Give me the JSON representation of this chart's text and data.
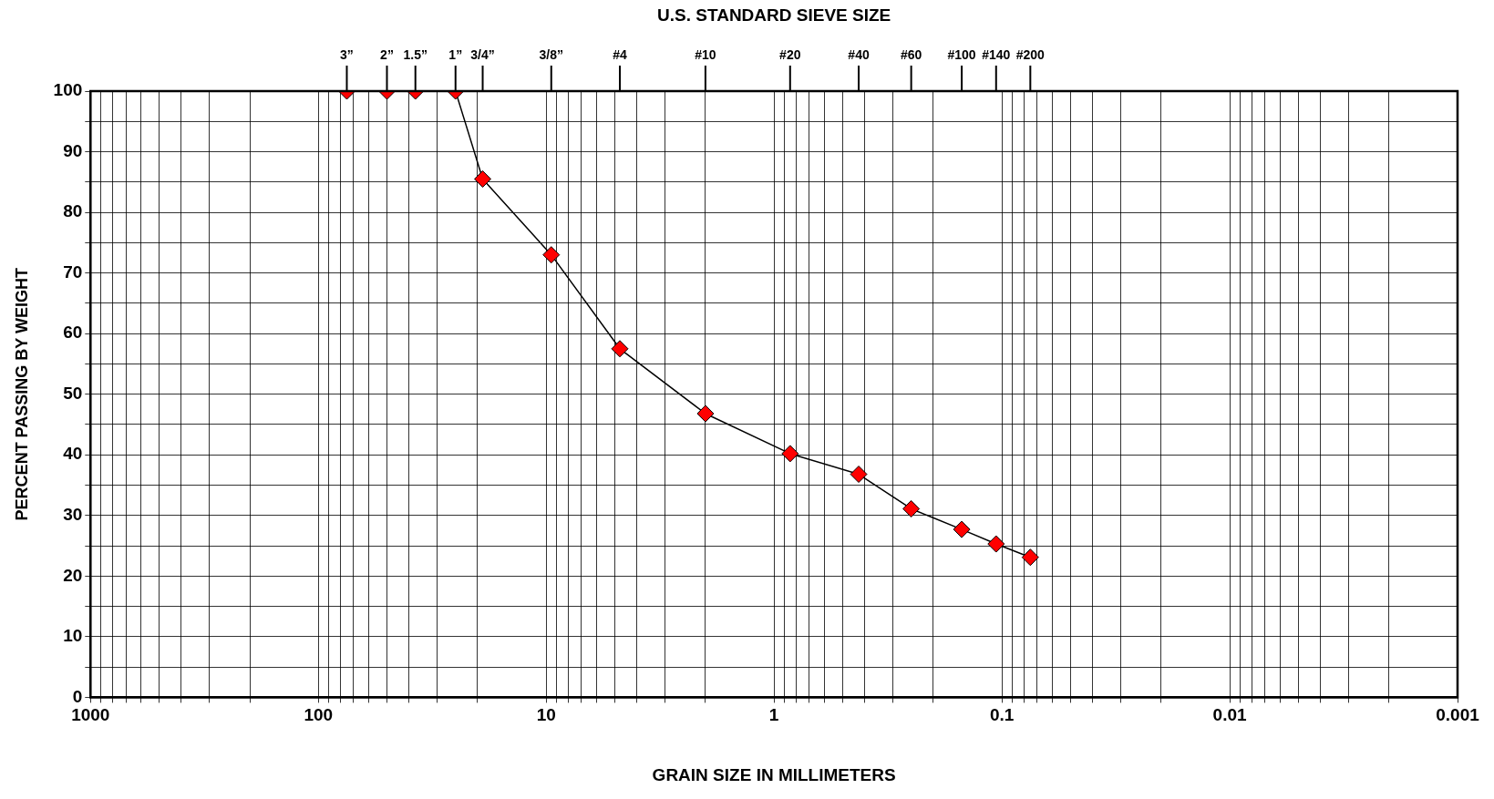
{
  "chart_data": {
    "type": "line",
    "xlabel": "GRAIN SIZE IN MILLIMETERS",
    "ylabel": "PERCENT PASSING BY WEIGHT",
    "title": "U.S. STANDARD SIEVE SIZE",
    "log": "x",
    "grid": true,
    "marker": "diamond",
    "line_style": "solid",
    "xlim": [
      1000,
      0.001
    ],
    "ylim": [
      0,
      100
    ],
    "xticks": [
      1000,
      {
        "value": 900,
        "label": null
      },
      {
        "value": 800,
        "label": null
      },
      {
        "value": 700,
        "label": null
      },
      {
        "value": 600,
        "label": null
      },
      {
        "value": 500,
        "label": null
      },
      {
        "value": 400,
        "label": null
      },
      {
        "value": 300,
        "label": null
      },
      {
        "value": 200,
        "label": null
      },
      100,
      {
        "value": 90,
        "label": null
      },
      {
        "value": 80,
        "label": null
      },
      {
        "value": 70,
        "label": null
      },
      {
        "value": 60,
        "label": null
      },
      {
        "value": 50,
        "label": null
      },
      {
        "value": 40,
        "label": null
      },
      {
        "value": 30,
        "label": null
      },
      {
        "value": 20,
        "label": null
      },
      10,
      {
        "value": 9,
        "label": null
      },
      {
        "value": 8,
        "label": null
      },
      {
        "value": 7,
        "label": null
      },
      {
        "value": 6,
        "label": null
      },
      {
        "value": 5,
        "label": null
      },
      {
        "value": 4,
        "label": null
      },
      {
        "value": 3,
        "label": null
      },
      {
        "value": 2,
        "label": null
      },
      1,
      {
        "value": 0.9,
        "label": null
      },
      {
        "value": 0.8,
        "label": null
      },
      {
        "value": 0.7,
        "label": null
      },
      {
        "value": 0.6,
        "label": null
      },
      {
        "value": 0.5,
        "label": null
      },
      {
        "value": 0.4,
        "label": null
      },
      {
        "value": 0.3,
        "label": null
      },
      {
        "value": 0.2,
        "label": null
      },
      0.1,
      {
        "value": 0.09,
        "label": null
      },
      {
        "value": 0.08,
        "label": null
      },
      {
        "value": 0.07,
        "label": null
      },
      {
        "value": 0.06,
        "label": null
      },
      {
        "value": 0.05,
        "label": null
      },
      {
        "value": 0.04,
        "label": null
      },
      {
        "value": 0.03,
        "label": null
      },
      {
        "value": 0.02,
        "label": null
      },
      0.01,
      {
        "value": 0.009,
        "label": null
      },
      {
        "value": 0.008,
        "label": null
      },
      {
        "value": 0.007,
        "label": null
      },
      {
        "value": 0.006,
        "label": null
      },
      {
        "value": 0.005,
        "label": null
      },
      {
        "value": 0.004,
        "label": null
      },
      {
        "value": 0.003,
        "label": null
      },
      {
        "value": 0.002,
        "label": null
      },
      0.001
    ],
    "yticks": [
      0,
      {
        "value": 5,
        "label": null
      },
      10,
      {
        "value": 15,
        "label": null
      },
      20,
      {
        "value": 25,
        "label": null
      },
      30,
      {
        "value": 35,
        "label": null
      },
      40,
      {
        "value": 45,
        "label": null
      },
      50,
      {
        "value": 55,
        "label": null
      },
      60,
      {
        "value": 65,
        "label": null
      },
      70,
      {
        "value": 75,
        "label": null
      },
      80,
      {
        "value": 85,
        "label": null
      },
      90,
      {
        "value": 95,
        "label": null
      },
      100
    ],
    "annotations": [
      {
        "text": "3”",
        "x": 75
      },
      {
        "text": "2”",
        "x": 50
      },
      {
        "text": "1.5”",
        "x": 37.5
      },
      {
        "text": "1”",
        "x": 25
      },
      {
        "text": "3/4”",
        "x": 19
      },
      {
        "text": "3/8”",
        "x": 9.5
      },
      {
        "text": "#4",
        "x": 4.75
      },
      {
        "text": "#10",
        "x": 2
      },
      {
        "text": "#20",
        "x": 0.85
      },
      {
        "text": "#40",
        "x": 0.425
      },
      {
        "text": "#60",
        "x": 0.25
      },
      {
        "text": "#100",
        "x": 0.15
      },
      {
        "text": "#140",
        "x": 0.106
      },
      {
        "text": "#200",
        "x": 0.075
      }
    ],
    "series": [
      {
        "color": "#ff0000",
        "x": [
          75,
          50,
          37.5,
          25,
          19,
          9.5,
          4.75,
          2,
          0.85,
          0.425,
          0.25,
          0.15,
          0.106,
          0.075
        ],
        "values": [
          100,
          100,
          100,
          100,
          85.5,
          73,
          57.5,
          46.8,
          40.2,
          36.8,
          31.1,
          27.7,
          25.3,
          23.1
        ]
      }
    ]
  }
}
